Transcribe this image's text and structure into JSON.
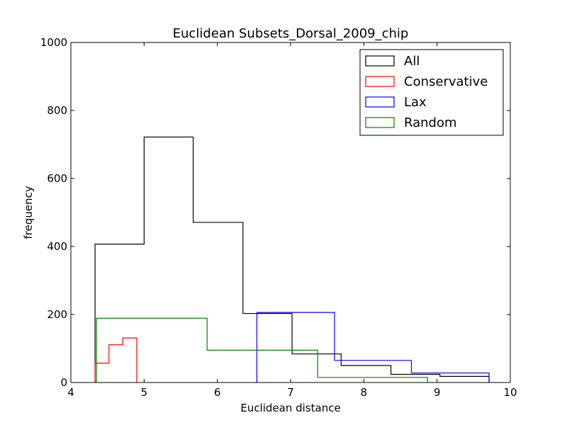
{
  "chart_data": {
    "type": "histogram",
    "title": "Euclidean Subsets_Dorsal_2009_chip",
    "xlabel": "Euclidean distance",
    "ylabel": "frequency",
    "xlim": [
      4,
      10
    ],
    "ylim": [
      0,
      1000
    ],
    "xticks": [
      "4",
      "5",
      "6",
      "7",
      "8",
      "9",
      "10"
    ],
    "yticks": [
      "0",
      "200",
      "400",
      "600",
      "800",
      "1000"
    ],
    "grid": false,
    "legend_position": "top-right",
    "series": [
      {
        "name": "All",
        "color": "#000000",
        "edges": [
          4.33,
          5.0,
          5.67,
          6.35,
          7.02,
          7.69,
          8.37,
          9.04,
          9.71
        ],
        "counts": [
          407,
          722,
          471,
          203,
          84,
          50,
          24,
          18
        ]
      },
      {
        "name": "Conservative",
        "color": "#ff0000",
        "edges": [
          4.33,
          4.52,
          4.71,
          4.9
        ],
        "counts": [
          57,
          111,
          131
        ]
      },
      {
        "name": "Lax",
        "color": "#0000ff",
        "edges": [
          6.54,
          7.6,
          8.65,
          9.71
        ],
        "counts": [
          206,
          65,
          28
        ]
      },
      {
        "name": "Random",
        "color": "#008000",
        "edges": [
          4.35,
          5.86,
          7.37,
          8.87
        ],
        "counts": [
          189,
          95,
          15
        ]
      }
    ]
  }
}
